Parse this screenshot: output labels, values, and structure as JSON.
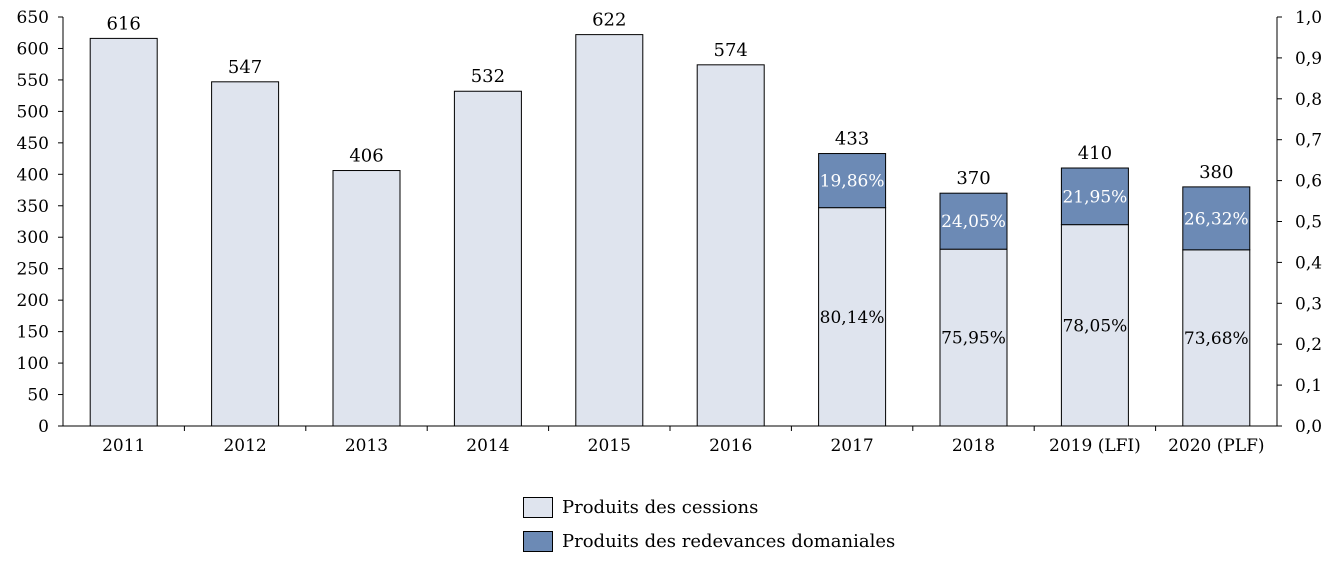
{
  "chart_data": {
    "type": "bar",
    "stacked": true,
    "categories": [
      "2011",
      "2012",
      "2013",
      "2014",
      "2015",
      "2016",
      "2017",
      "2018",
      "2019 (LFI)",
      "2020 (PLF)"
    ],
    "totals": [
      616,
      547,
      406,
      532,
      622,
      574,
      433,
      370,
      410,
      380
    ],
    "series": [
      {
        "name": "Produits des cessions",
        "color": "#dfe4ee",
        "values": [
          616,
          547,
          406,
          532,
          622,
          574,
          347,
          281,
          320,
          280
        ],
        "pct_labels": [
          "",
          "",
          "",
          "",
          "",
          "",
          "80,14%",
          "75,95%",
          "78,05%",
          "73,68%"
        ]
      },
      {
        "name": "Produits des redevances domaniales",
        "color": "#6c8ab5",
        "values": [
          0,
          0,
          0,
          0,
          0,
          0,
          86,
          89,
          90,
          100
        ],
        "pct_labels": [
          "",
          "",
          "",
          "",
          "",
          "",
          "19,86%",
          "24,05%",
          "21,95%",
          "26,32%"
        ]
      }
    ],
    "ylim": [
      0,
      650
    ],
    "yticks": [
      "0",
      "50",
      "100",
      "150",
      "200",
      "250",
      "300",
      "350",
      "400",
      "450",
      "500",
      "550",
      "600",
      "650"
    ],
    "y2lim": [
      0,
      1
    ],
    "y2ticks": [
      "0,0",
      "0,1",
      "0,2",
      "0,3",
      "0,4",
      "0,5",
      "0,6",
      "0,7",
      "0,8",
      "0,9",
      "1,0"
    ],
    "legend_position": "bottom",
    "grid": false
  }
}
